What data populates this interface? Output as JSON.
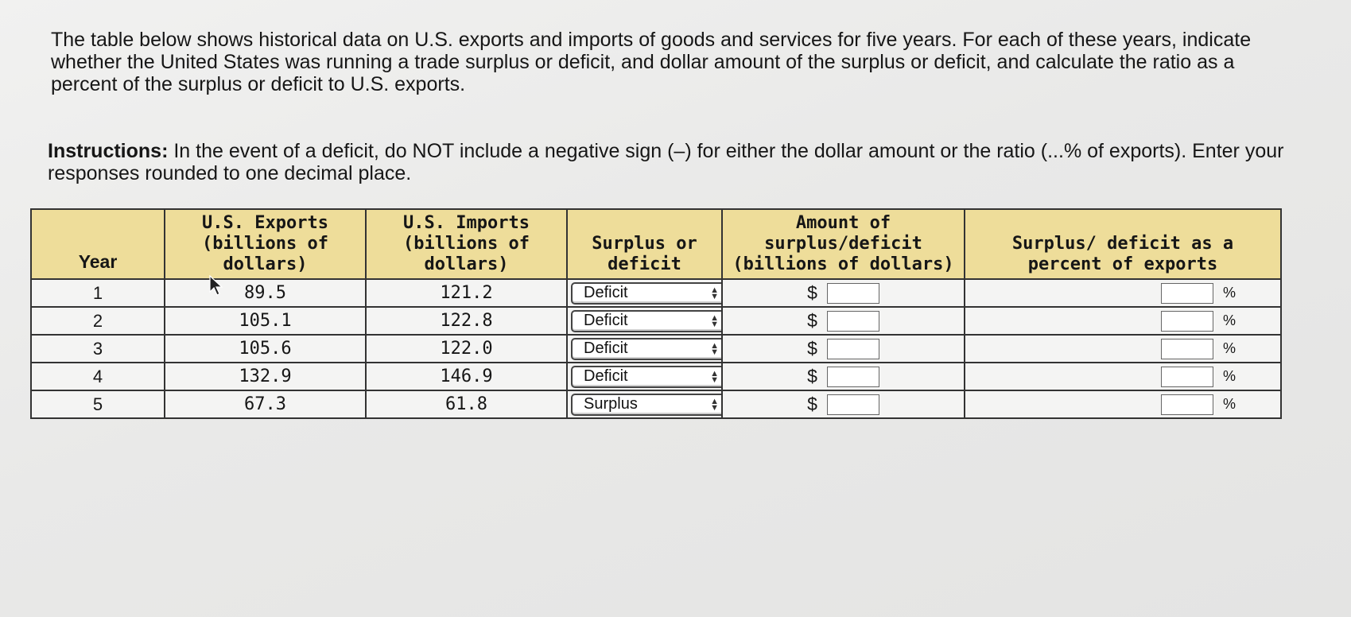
{
  "question": {
    "intro": "The table below shows historical data on U.S. exports and imports of goods and services for five years. For each of these years, indicate whether the United States was running a trade surplus or deficit, and dollar amount of the surplus or deficit, and calculate the ratio as a percent of the surplus or deficit to U.S. exports.",
    "instructions_label": "Instructions:",
    "instructions_text": " In the event of a deficit, do NOT include a negative sign (–) for either the dollar amount or the ratio (...% of exports). Enter your responses rounded to one decimal place."
  },
  "table": {
    "headers": {
      "year": "Year",
      "exports": "U.S. Exports (billions of dollars)",
      "imports": "U.S. Imports (billions of dollars)",
      "surplus_deficit": "Surplus or deficit",
      "amount": "Amount of surplus/deficit (billions of dollars)",
      "percent": "Surplus/ deficit as a percent of exports"
    },
    "currency_symbol": "$",
    "percent_symbol": "%",
    "rows": [
      {
        "year": "1",
        "exports": "89.5",
        "imports": "121.2",
        "selection": "Deficit",
        "amount": "",
        "percent": ""
      },
      {
        "year": "2",
        "exports": "105.1",
        "imports": "122.8",
        "selection": "Deficit",
        "amount": "",
        "percent": ""
      },
      {
        "year": "3",
        "exports": "105.6",
        "imports": "122.0",
        "selection": "Deficit",
        "amount": "",
        "percent": ""
      },
      {
        "year": "4",
        "exports": "132.9",
        "imports": "146.9",
        "selection": "Deficit",
        "amount": "",
        "percent": ""
      },
      {
        "year": "5",
        "exports": "67.3",
        "imports": "61.8",
        "selection": "Surplus",
        "amount": "",
        "percent": ""
      }
    ]
  },
  "icons": {
    "select_chevron": "up-down-chevron-icon",
    "pointer": "mouse-pointer-icon"
  }
}
